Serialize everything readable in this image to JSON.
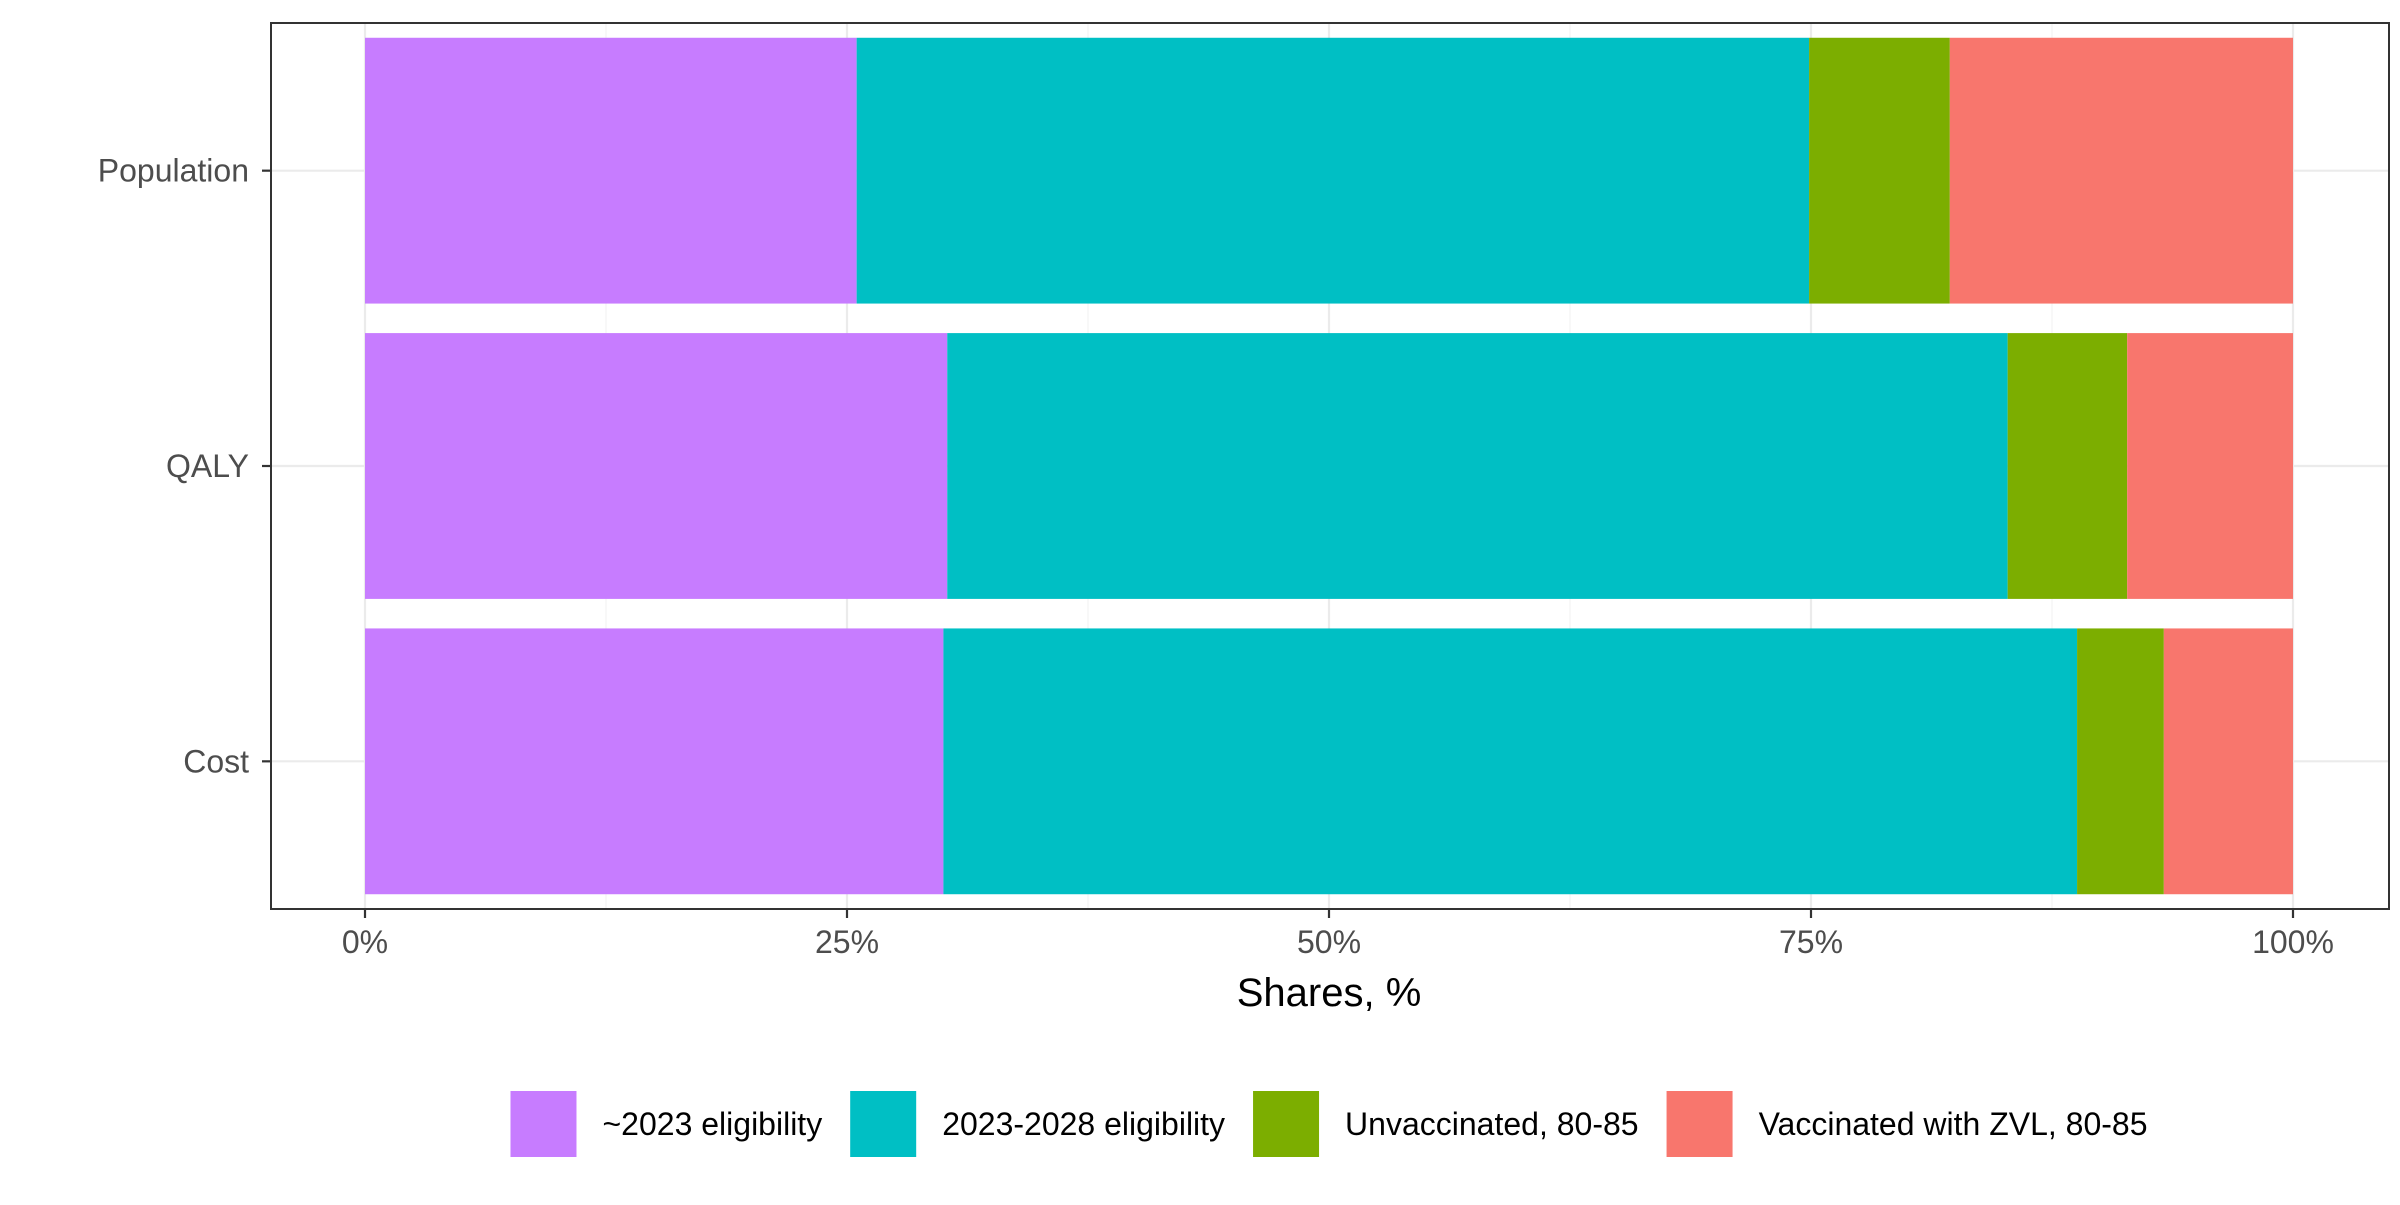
{
  "chart_data": {
    "type": "bar",
    "orientation": "horizontal",
    "stacked": true,
    "xlabel": "Shares, %",
    "ylabel": "",
    "xlim": [
      0,
      100
    ],
    "x_ticks": [
      0,
      25,
      50,
      75,
      100
    ],
    "x_tick_labels": [
      "0%",
      "25%",
      "50%",
      "75%",
      "100%"
    ],
    "categories": [
      "Population",
      "QALY",
      "Cost"
    ],
    "grid": true,
    "legend_position": "bottom",
    "series": [
      {
        "name": "~2023 eligibility",
        "color": "#C77CFF",
        "values": [
          25.5,
          30.2,
          30.0
        ]
      },
      {
        "name": "2023-2028 eligibility",
        "color": "#00BFC4",
        "values": [
          49.4,
          55.0,
          58.8
        ]
      },
      {
        "name": "Unvaccinated, 80-85",
        "color": "#7CAE00",
        "values": [
          7.3,
          6.2,
          4.5
        ]
      },
      {
        "name": "Vaccinated with ZVL, 80-85",
        "color": "#F8766D",
        "values": [
          17.8,
          8.6,
          6.7
        ]
      }
    ]
  }
}
